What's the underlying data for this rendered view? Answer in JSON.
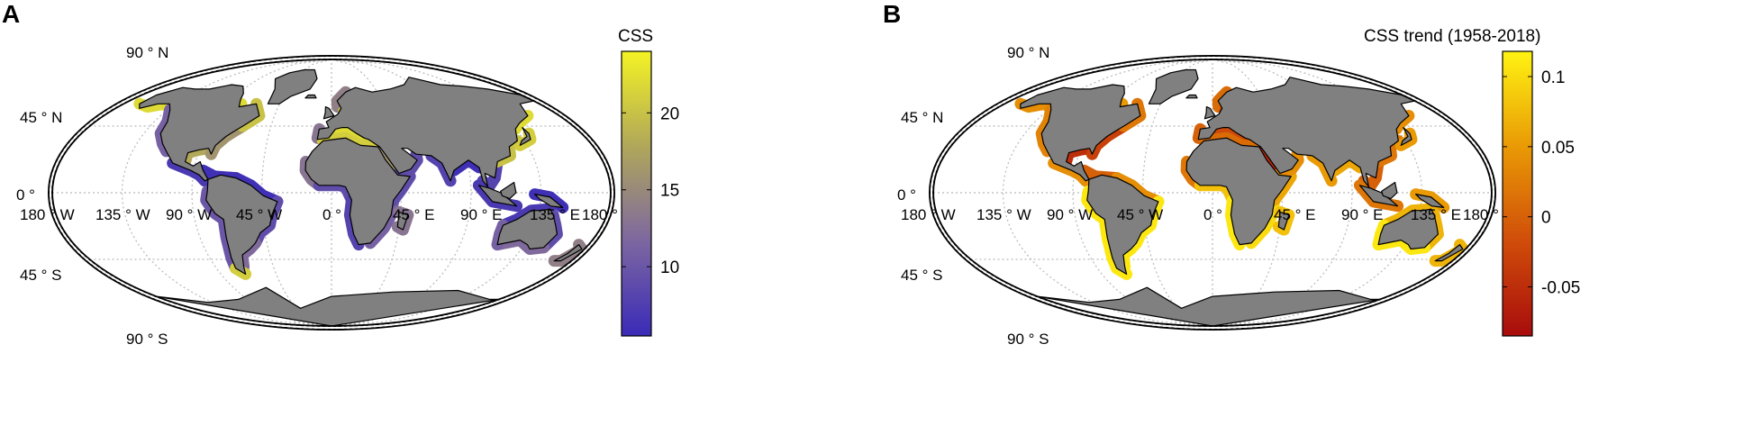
{
  "panels": [
    {
      "letter": "A",
      "colorbar": {
        "title": "CSS",
        "ticks": [
          "20",
          "15",
          "10"
        ],
        "tick_values": [
          20,
          15,
          10
        ],
        "range": [
          5.5,
          24
        ],
        "colors": [
          "#3a2bb8",
          "#7d67a0",
          "#b0a75a",
          "#f4f324"
        ]
      }
    },
    {
      "letter": "B",
      "colorbar": {
        "title": "CSS trend (1958-2018)",
        "ticks": [
          "0.1",
          "0.05",
          "0",
          "-0.05"
        ],
        "tick_values": [
          0.1,
          0.05,
          0,
          -0.05
        ],
        "range": [
          -0.085,
          0.118
        ],
        "colors": [
          "#a80c0c",
          "#d04d0a",
          "#e99a05",
          "#fff312"
        ]
      }
    }
  ],
  "map": {
    "lat_labels": [
      {
        "deg": "90",
        "dir": "N"
      },
      {
        "deg": "45",
        "dir": "N"
      },
      {
        "deg": "0",
        "dir": ""
      },
      {
        "deg": "45",
        "dir": "S"
      },
      {
        "deg": "90",
        "dir": "S"
      }
    ],
    "lon_labels": [
      {
        "deg": "180",
        "dir": "W"
      },
      {
        "deg": "135",
        "dir": "W"
      },
      {
        "deg": "90",
        "dir": "W"
      },
      {
        "deg": "45",
        "dir": "W"
      },
      {
        "deg": "0",
        "dir": ""
      },
      {
        "deg": "45",
        "dir": "E"
      },
      {
        "deg": "90",
        "dir": "E"
      },
      {
        "deg": "135",
        "dir": "E"
      },
      {
        "deg": "180",
        "dir": ""
      }
    ],
    "degree_symbol": "°",
    "land_color": "#808080",
    "ocean_color": "#ffffff",
    "grid_color": "#b8b8b8"
  }
}
